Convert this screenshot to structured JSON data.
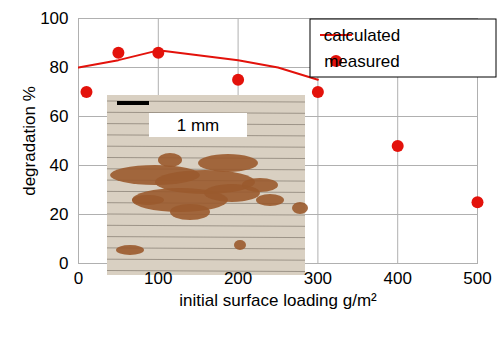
{
  "chart_data": {
    "type": "scatter",
    "x_label": "initial surface loading g/m²",
    "y_label": "degradation %",
    "xlim": [
      0,
      500
    ],
    "ylim": [
      0,
      100
    ],
    "xticks": [
      0,
      100,
      200,
      300,
      400,
      500
    ],
    "yticks": [
      0,
      20,
      40,
      60,
      80,
      100
    ],
    "grid": true,
    "legend": "top-right",
    "annotations": [
      {
        "text": "1 mm"
      }
    ],
    "series": [
      {
        "name": "calculated",
        "type": "line",
        "line_style": "solid",
        "color": "#e3120b",
        "x": [
          0,
          50,
          100,
          150,
          200,
          250,
          300
        ],
        "values": [
          80,
          83,
          87,
          85,
          83,
          80,
          75
        ]
      },
      {
        "name": "measured",
        "type": "scatter",
        "marker": "circle",
        "color": "#e3120b",
        "x": [
          10,
          50,
          100,
          200,
          300,
          400,
          500
        ],
        "values": [
          70,
          86,
          86,
          75,
          70,
          48,
          25
        ]
      }
    ]
  }
}
